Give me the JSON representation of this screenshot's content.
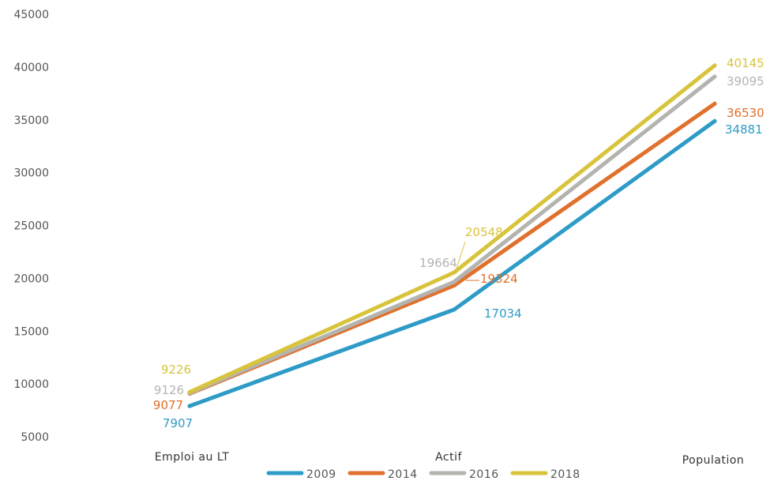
{
  "chart_data": {
    "type": "line",
    "categories": [
      "Emploi au LT",
      "Actif",
      "Population"
    ],
    "series": [
      {
        "name": "2009",
        "color": "#2e9bc7",
        "values": [
          7907,
          17034,
          34881
        ]
      },
      {
        "name": "2014",
        "color": "#e0702c",
        "values": [
          9077,
          19324,
          36530
        ]
      },
      {
        "name": "2016",
        "color": "#b3b3b0",
        "values": [
          9126,
          19664,
          39095
        ]
      },
      {
        "name": "2018",
        "color": "#d8c43c",
        "values": [
          9226,
          20548,
          40145
        ]
      }
    ],
    "ylim": [
      5000,
      45000
    ],
    "yticks": [
      "5000",
      "10000",
      "15000",
      "20000",
      "25000",
      "30000",
      "35000",
      "40000",
      "45000"
    ],
    "grid": false,
    "legend": "bottom",
    "title": "",
    "xlabel": "",
    "ylabel": ""
  }
}
